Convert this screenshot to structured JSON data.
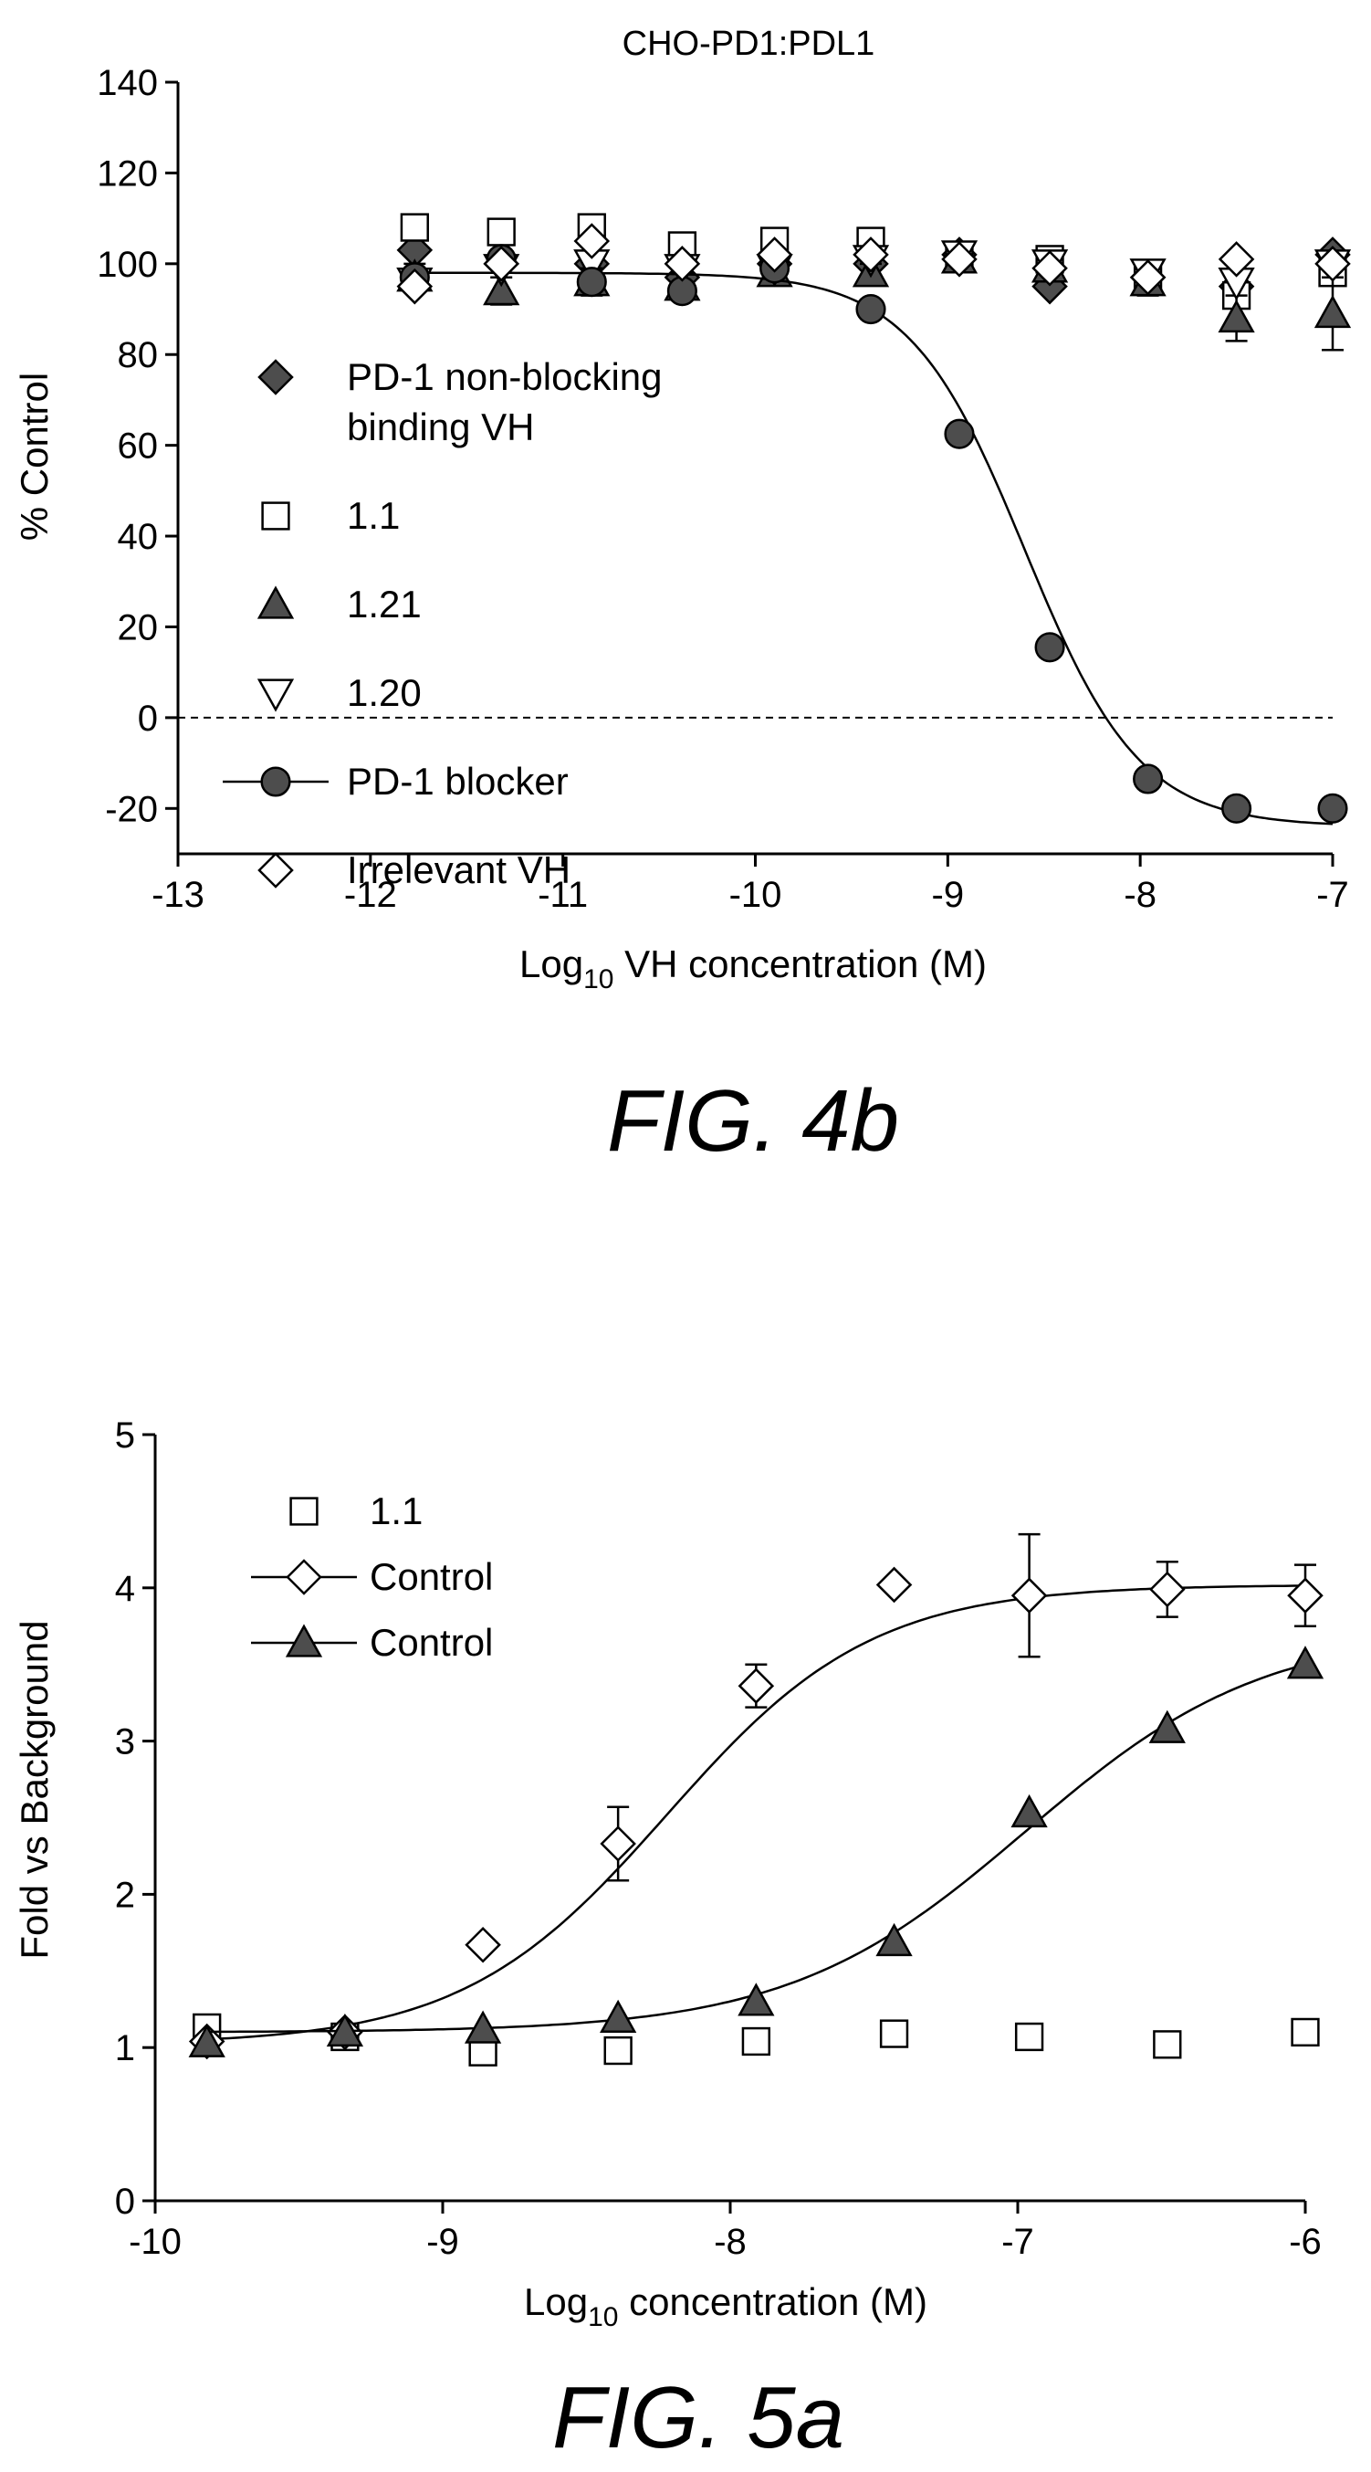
{
  "figures": [
    {
      "label": "FIG. 4b"
    },
    {
      "label": "FIG. 5a"
    }
  ],
  "chart_data": [
    {
      "type": "scatter",
      "title": "CHO-PD1:PDL1",
      "xlabel_main": "Log",
      "xlabel_sub": "10",
      "xlabel_rest": " VH concentration (M)",
      "ylabel": "% Control",
      "xlim": [
        -13,
        -7
      ],
      "ylim": [
        -30,
        140
      ],
      "xticks": [
        -13,
        -12,
        -11,
        -10,
        -9,
        -8,
        -7
      ],
      "yticks": [
        -20,
        0,
        20,
        40,
        60,
        80,
        100,
        120,
        140
      ],
      "reference_line_y": 0,
      "legend_position": "left",
      "series": [
        {
          "name": "PD-1 non-blocking binding VH",
          "name_lines": [
            "PD-1 non-blocking",
            "binding VH"
          ],
          "marker": "diamond-filled",
          "x": [
            -11.77,
            -11.32,
            -10.85,
            -10.38,
            -9.9,
            -9.4,
            -8.94,
            -8.47,
            -7.96,
            -7.5,
            -7.0
          ],
          "y": [
            103,
            100,
            100,
            97,
            100,
            100,
            102,
            95,
            97,
            95,
            102
          ]
        },
        {
          "name": "1.1",
          "marker": "square-open",
          "x": [
            -11.77,
            -11.32,
            -10.85,
            -10.38,
            -9.9,
            -9.4,
            -8.94,
            -8.47,
            -7.96,
            -7.5,
            -7.0
          ],
          "y": [
            108,
            107,
            108,
            104,
            105,
            105,
            101,
            101,
            97,
            93,
            98
          ]
        },
        {
          "name": "1.21",
          "marker": "triangle-filled",
          "x": [
            -11.77,
            -11.32,
            -10.85,
            -10.38,
            -9.9,
            -9.4,
            -8.94,
            -8.47,
            -7.96,
            -7.5,
            -7.0
          ],
          "y": [
            97,
            94,
            96,
            95,
            98,
            98,
            101,
            99,
            96,
            88,
            89
          ],
          "yerr": [
            3,
            3,
            3,
            3,
            2,
            2,
            2,
            2,
            3,
            5,
            8
          ]
        },
        {
          "name": "1.20",
          "marker": "triangle-down-open",
          "x": [
            -11.77,
            -11.32,
            -10.85,
            -10.38,
            -9.9,
            -9.4,
            -8.94,
            -8.47,
            -7.96,
            -7.5,
            -7.0
          ],
          "y": [
            96,
            99,
            100,
            99,
            99,
            101,
            102,
            100,
            98,
            96,
            100
          ]
        },
        {
          "name": "PD-1 blocker",
          "marker": "circle-filled",
          "fit_line": true,
          "fit": {
            "top": 98,
            "bottom": -24,
            "logEC50": -8.6,
            "hill": 1.45
          },
          "x": [
            -11.77,
            -11.32,
            -10.85,
            -10.38,
            -9.9,
            -9.4,
            -8.94,
            -8.47,
            -7.96,
            -7.5,
            -7.0
          ],
          "y": [
            97,
            101,
            96,
            94,
            99,
            90,
            62.5,
            15.5,
            -13.5,
            -20,
            -20
          ]
        },
        {
          "name": "Irrelevant VH",
          "marker": "diamond-open",
          "x": [
            -11.77,
            -11.32,
            -10.85,
            -10.38,
            -9.9,
            -9.4,
            -8.94,
            -8.47,
            -7.96,
            -7.5,
            -7.0
          ],
          "y": [
            95,
            100,
            105,
            100,
            102,
            102,
            101,
            99,
            97,
            101,
            100
          ]
        }
      ]
    },
    {
      "type": "scatter",
      "title": "",
      "xlabel_main": "Log",
      "xlabel_sub": "10",
      "xlabel_rest": " concentration (M)",
      "ylabel": "Fold vs Background",
      "xlim": [
        -10,
        -6
      ],
      "ylim": [
        0,
        5
      ],
      "xticks": [
        -10,
        -9,
        -8,
        -7,
        -6
      ],
      "yticks": [
        0,
        1,
        2,
        3,
        4,
        5
      ],
      "legend_position": "top-left",
      "series": [
        {
          "name": "1.1",
          "marker": "square-open",
          "x": [
            -9.82,
            -9.34,
            -8.86,
            -8.39,
            -7.91,
            -7.43,
            -6.96,
            -6.48,
            -6.0
          ],
          "y": [
            1.13,
            1.07,
            0.97,
            0.98,
            1.04,
            1.09,
            1.07,
            1.02,
            1.1
          ]
        },
        {
          "name": "Control",
          "marker": "diamond-open",
          "fit_line": true,
          "fit": {
            "top": 4.02,
            "bottom": 1.02,
            "logEC50": -8.22,
            "hill": 1.22
          },
          "x": [
            -9.82,
            -9.34,
            -8.86,
            -8.39,
            -7.91,
            -7.43,
            -6.96,
            -6.48,
            -6.0
          ],
          "y": [
            1.04,
            1.1,
            1.67,
            2.33,
            3.36,
            4.02,
            3.95,
            3.99,
            3.95
          ],
          "yerr": [
            0,
            0,
            0,
            0.24,
            0.14,
            0,
            0.4,
            0.18,
            0.2
          ]
        },
        {
          "name": "Control",
          "marker": "triangle-filled",
          "fit_line": true,
          "fit": {
            "top": 3.73,
            "bottom": 1.1,
            "logEC50": -6.97,
            "hill": 1.05
          },
          "x": [
            -9.82,
            -9.34,
            -8.86,
            -8.39,
            -7.91,
            -7.43,
            -6.96,
            -6.48,
            -6.0
          ],
          "y": [
            1.03,
            1.1,
            1.12,
            1.19,
            1.3,
            1.69,
            2.53,
            3.08,
            3.5
          ]
        }
      ]
    }
  ]
}
